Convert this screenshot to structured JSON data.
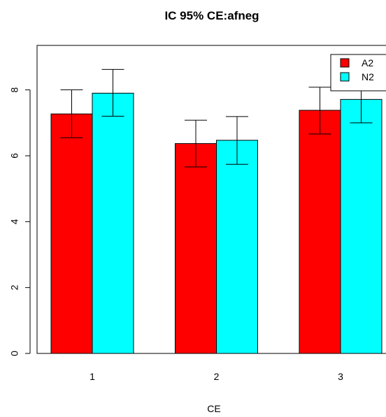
{
  "chart_data": {
    "type": "bar",
    "title": "IC 95% CE:afneg",
    "xlabel": "CE",
    "ylabel": "",
    "categories": [
      "1",
      "2",
      "3"
    ],
    "ylim": [
      0,
      9.35
    ],
    "yticks": [
      "0",
      "2",
      "4",
      "6",
      "8"
    ],
    "series": [
      {
        "name": "A2",
        "color": "#ff0000",
        "values": [
          7.27,
          6.37,
          7.38
        ],
        "ci_low": [
          6.55,
          5.66,
          6.66
        ],
        "ci_high": [
          8.0,
          7.08,
          8.08
        ]
      },
      {
        "name": "N2",
        "color": "#00ffff",
        "values": [
          7.9,
          6.47,
          7.71
        ],
        "ci_low": [
          7.2,
          5.74,
          7.0
        ],
        "ci_high": [
          8.62,
          7.19,
          8.42
        ]
      }
    ],
    "legend_position": "top-right",
    "grid": false
  }
}
